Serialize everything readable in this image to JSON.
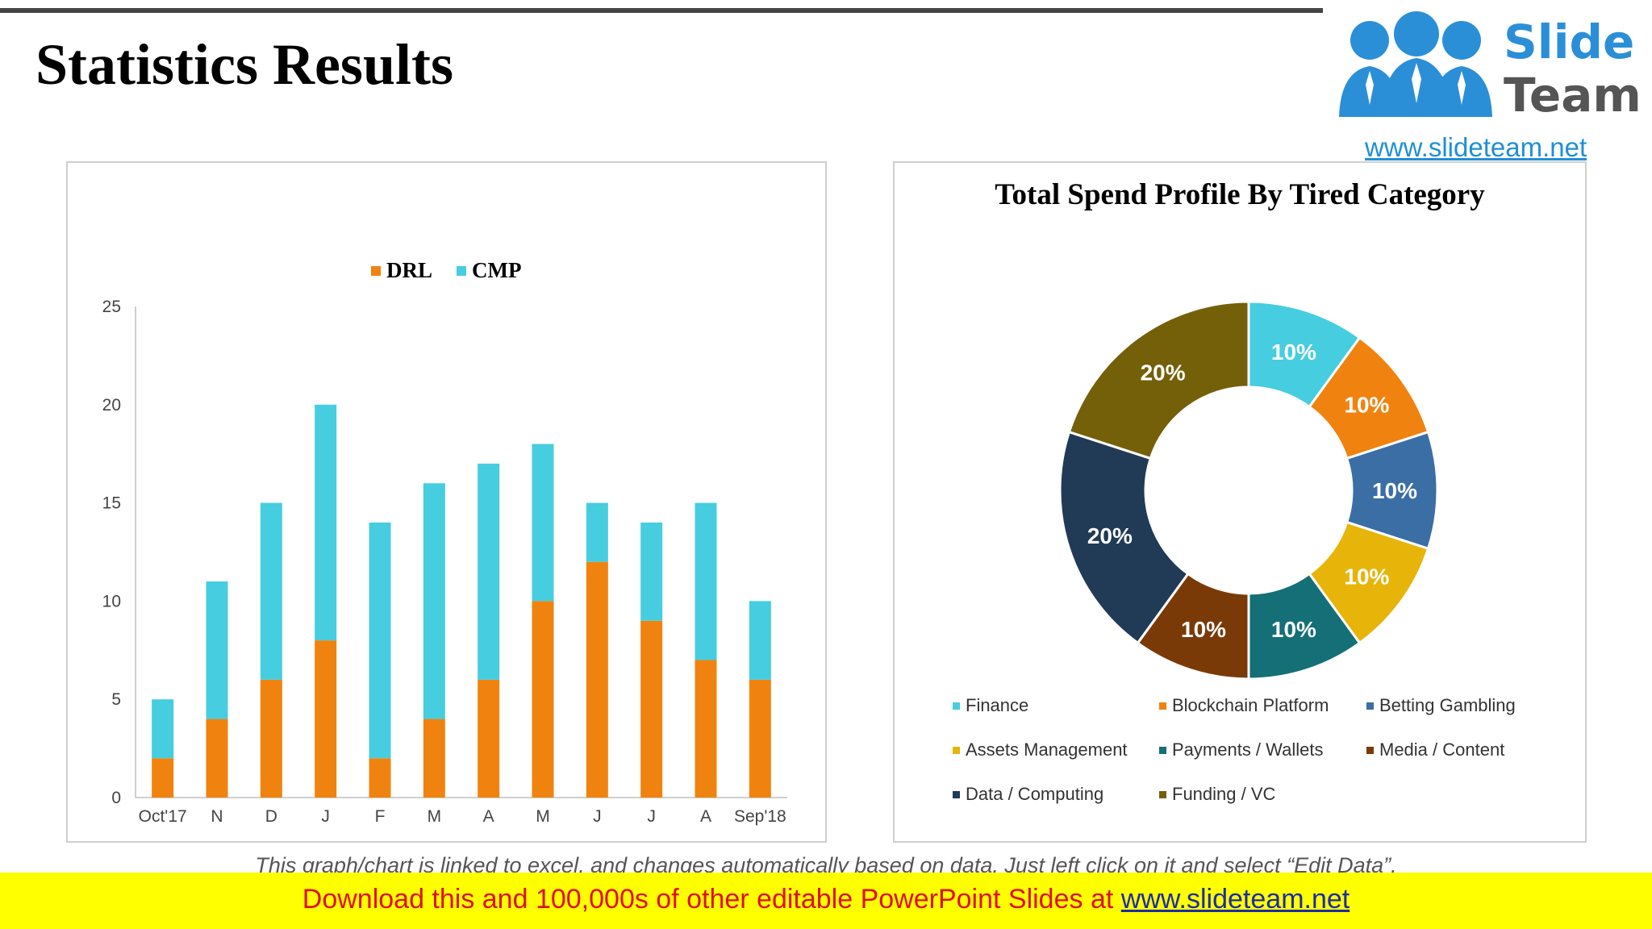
{
  "page": {
    "title": "Statistics Results"
  },
  "logo": {
    "line1": "Slide",
    "line2": "Team",
    "url": "www.slideteam.net"
  },
  "caption": "This graph/chart is linked to excel, and changes automatically based on data. Just left click on it and select “Edit Data”.",
  "footer": {
    "text": "Download this and 100,000s of other editable PowerPoint Slides at",
    "link": "www.slideteam.net"
  },
  "colors": {
    "drl": "#f0830f",
    "cmp": "#46cde0",
    "title": "#000000",
    "footer_bg": "#ffff00",
    "footer_text": "#e01010"
  },
  "chart_data": [
    {
      "type": "bar",
      "stacked": true,
      "title": "",
      "categories": [
        "Oct'17",
        "N",
        "D",
        "J",
        "F",
        "M",
        "A",
        "M",
        "J",
        "J",
        "A",
        "Sep'18"
      ],
      "series": [
        {
          "name": "DRL",
          "color": "#f0830f",
          "values": [
            2,
            4,
            6,
            8,
            2,
            4,
            6,
            10,
            12,
            9,
            7,
            6
          ]
        },
        {
          "name": "CMP",
          "color": "#46cde0",
          "values": [
            3,
            7,
            9,
            12,
            12,
            12,
            11,
            8,
            3,
            5,
            8,
            4
          ]
        }
      ],
      "yticks": [
        "0",
        "5",
        "10",
        "15",
        "20",
        "25"
      ],
      "ylim": [
        0,
        25
      ],
      "legend": "top-center",
      "grid": false
    },
    {
      "type": "pie",
      "donut": true,
      "title": "Total Spend Profile By Tired Category",
      "slices": [
        {
          "name": "Finance",
          "value": 10,
          "label": "10%",
          "color": "#46cde0"
        },
        {
          "name": "Blockchain Platform",
          "value": 10,
          "label": "10%",
          "color": "#f0830f"
        },
        {
          "name": "Betting Gambling",
          "value": 10,
          "label": "10%",
          "color": "#3b6ea5"
        },
        {
          "name": "Assets Management",
          "value": 10,
          "label": "10%",
          "color": "#e7b40a"
        },
        {
          "name": "Payments / Wallets",
          "value": 10,
          "label": "10%",
          "color": "#146f76"
        },
        {
          "name": "Media / Content",
          "value": 10,
          "label": "10%",
          "color": "#7a3a08"
        },
        {
          "name": "Data / Computing",
          "value": 20,
          "label": "20%",
          "color": "#213a56"
        },
        {
          "name": "Funding / VC",
          "value": 20,
          "label": "20%",
          "color": "#75600a"
        }
      ],
      "legend": "bottom"
    }
  ]
}
